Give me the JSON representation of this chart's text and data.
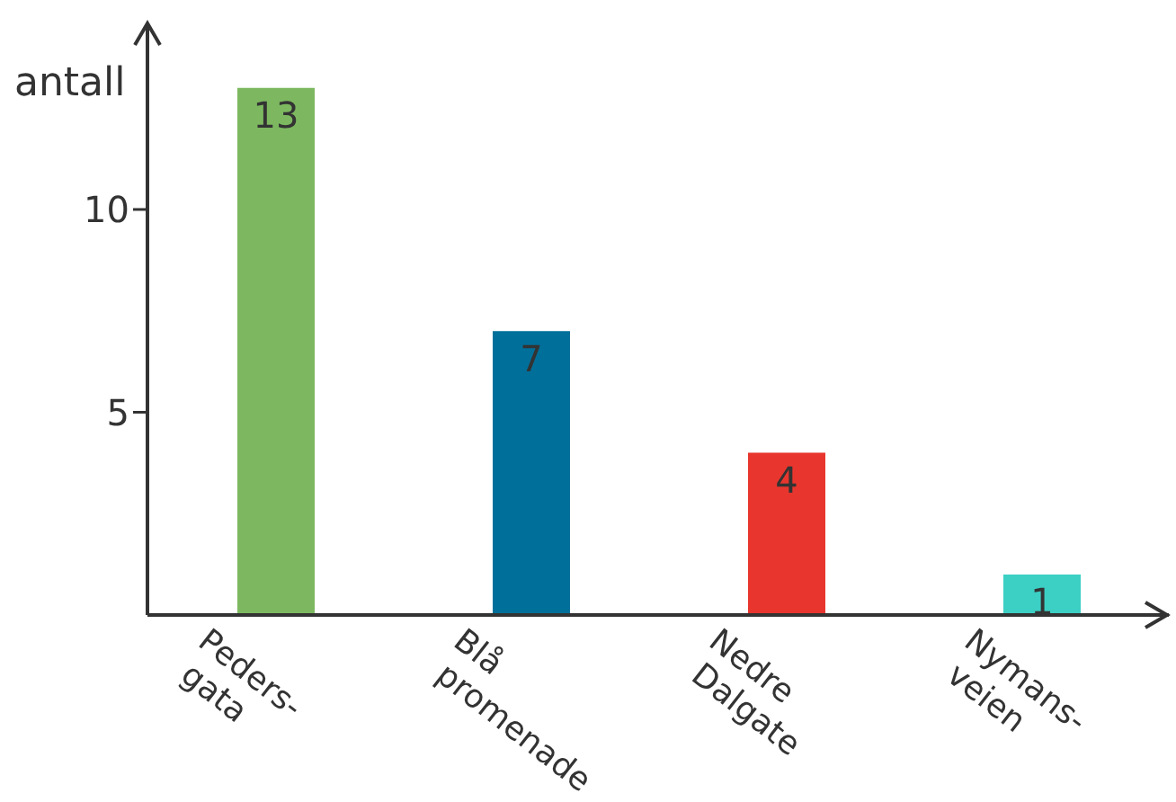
{
  "chart_data": {
    "type": "bar",
    "ylabel": "antall",
    "categories": [
      "Peders-\ngata",
      "Blå\npromenade",
      "Nedre\nDalgate",
      "Nymans-\nveien"
    ],
    "values": [
      13,
      7,
      4,
      1
    ],
    "colors": [
      "#7db860",
      "#00709a",
      "#e8362e",
      "#3ccfc4"
    ],
    "ylim": [
      0,
      14.5
    ],
    "yticks": [
      5,
      10
    ],
    "grid": false,
    "data_labels": true
  }
}
